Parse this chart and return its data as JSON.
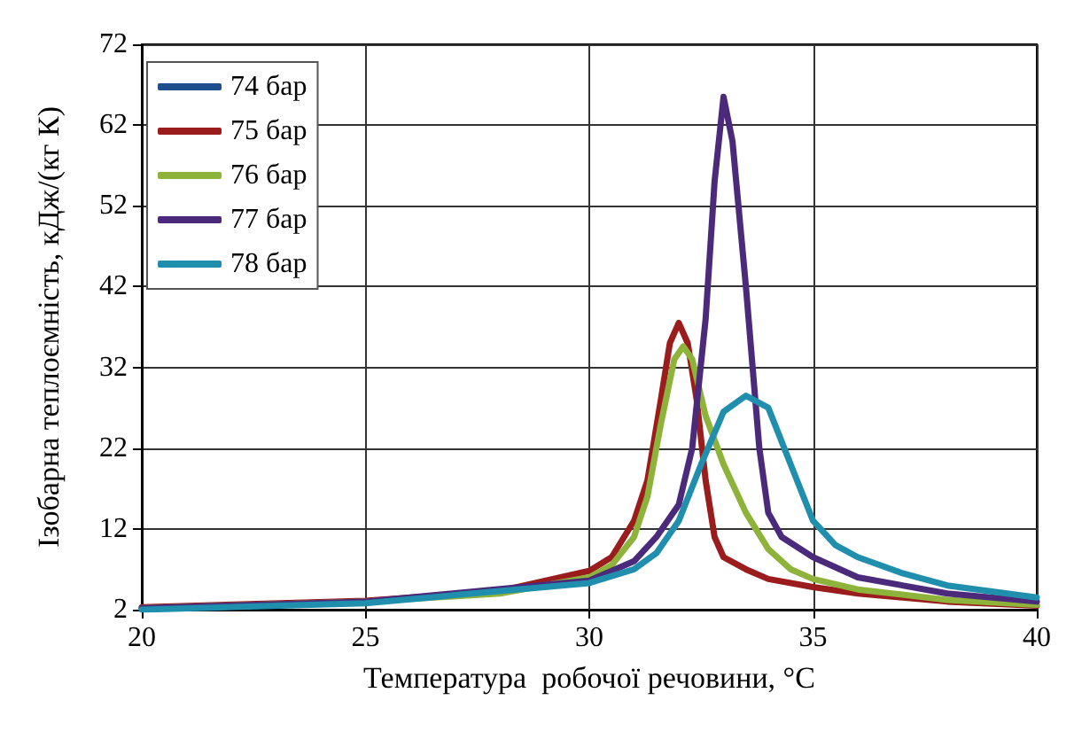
{
  "chart_data": {
    "type": "line",
    "xlabel": "Температура  робочої речовини, °C",
    "ylabel": "Ізобарна теплоємність, кДж/(кг К)",
    "xlim": [
      20,
      40
    ],
    "xticks": [
      20,
      25,
      30,
      35,
      40
    ],
    "ylim": [
      2,
      72
    ],
    "yticks": [
      2,
      12,
      22,
      32,
      42,
      52,
      62,
      72
    ],
    "grid": true,
    "legend": "top left",
    "marker": "none",
    "line_style": "solid",
    "series": [
      {
        "name": "74 бар",
        "color": "#1f4e8c"
      },
      {
        "name": "75 бар",
        "color": "#9b1c1c",
        "x": [
          20,
          25,
          28,
          30,
          30.5,
          31,
          31.3,
          31.6,
          31.8,
          32,
          32.2,
          32.4,
          32.6,
          32.8,
          33,
          33.5,
          34,
          35,
          36,
          38,
          40
        ],
        "values": [
          2.3,
          3.1,
          4.3,
          6.8,
          8.5,
          13,
          18,
          28,
          35,
          37.5,
          35,
          28,
          18,
          11,
          8.5,
          7,
          5.8,
          4.8,
          4,
          3,
          2.5
        ]
      },
      {
        "name": "76 бар",
        "color": "#8db33a",
        "x": [
          20,
          25,
          28,
          30,
          30.5,
          31,
          31.3,
          31.6,
          31.9,
          32.1,
          32.3,
          32.6,
          33,
          33.5,
          34,
          34.5,
          35,
          36,
          38,
          40
        ],
        "values": [
          2.2,
          3,
          4,
          6,
          7.5,
          11,
          16,
          25,
          33,
          34.6,
          33,
          26,
          20,
          14,
          9.5,
          7,
          5.8,
          4.5,
          3.2,
          2.6
        ]
      },
      {
        "name": "77 бар",
        "color": "#4b2a7b",
        "x": [
          20,
          25,
          30,
          31,
          31.5,
          32,
          32.3,
          32.6,
          32.8,
          33,
          33.2,
          33.5,
          33.8,
          34,
          34.3,
          35,
          36,
          38,
          40
        ],
        "values": [
          2.2,
          3,
          5.6,
          8,
          11,
          15,
          22,
          38,
          55,
          65.5,
          60,
          42,
          22,
          14,
          11,
          8.5,
          6,
          4,
          3
        ]
      },
      {
        "name": "78 бар",
        "color": "#1f8fad",
        "x": [
          20,
          25,
          30,
          31,
          31.5,
          32,
          32.5,
          33,
          33.5,
          34,
          34.5,
          35,
          35.5,
          36,
          37,
          38,
          40
        ],
        "values": [
          2,
          2.8,
          5.3,
          7,
          9,
          13,
          20,
          26.5,
          28.5,
          27,
          20,
          13,
          10,
          8.5,
          6.5,
          5,
          3.5
        ]
      }
    ]
  }
}
